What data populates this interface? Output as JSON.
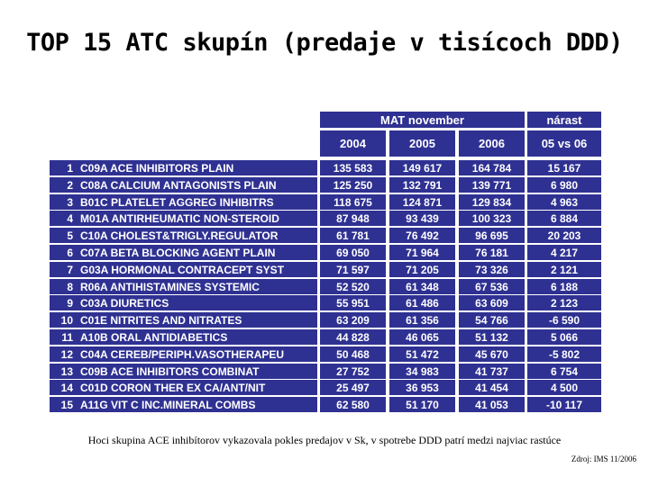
{
  "title": "TOP 15 ATC skupín (predaje v tisícoch DDD)",
  "header": {
    "group_mat": "MAT november",
    "group_growth": "nárast",
    "years": [
      "2004",
      "2005",
      "2006"
    ],
    "growth_label": "05 vs 06"
  },
  "rows": [
    {
      "rank": "1",
      "name": "C09A ACE INHIBITORS PLAIN",
      "y2004": "135 583",
      "y2005": "149 617",
      "y2006": "164 784",
      "growth": "15 167"
    },
    {
      "rank": "2",
      "name": "C08A CALCIUM ANTAGONISTS PLAIN",
      "y2004": "125 250",
      "y2005": "132 791",
      "y2006": "139 771",
      "growth": "6 980"
    },
    {
      "rank": "3",
      "name": "B01C PLATELET AGGREG INHIBITRS",
      "y2004": "118 675",
      "y2005": "124 871",
      "y2006": "129 834",
      "growth": "4 963"
    },
    {
      "rank": "4",
      "name": "M01A ANTIRHEUMATIC NON-STEROID",
      "y2004": "87 948",
      "y2005": "93 439",
      "y2006": "100 323",
      "growth": "6 884"
    },
    {
      "rank": "5",
      "name": "C10A CHOLEST&TRIGLY.REGULATOR",
      "y2004": "61 781",
      "y2005": "76 492",
      "y2006": "96 695",
      "growth": "20 203"
    },
    {
      "rank": "6",
      "name": "C07A BETA BLOCKING AGENT PLAIN",
      "y2004": "69 050",
      "y2005": "71 964",
      "y2006": "76 181",
      "growth": "4 217"
    },
    {
      "rank": "7",
      "name": "G03A HORMONAL CONTRACEPT SYST",
      "y2004": "71 597",
      "y2005": "71 205",
      "y2006": "73 326",
      "growth": "2 121"
    },
    {
      "rank": "8",
      "name": "R06A ANTIHISTAMINES SYSTEMIC",
      "y2004": "52 520",
      "y2005": "61 348",
      "y2006": "67 536",
      "growth": "6 188"
    },
    {
      "rank": "9",
      "name": "C03A DIURETICS",
      "y2004": "55 951",
      "y2005": "61 486",
      "y2006": "63 609",
      "growth": "2 123"
    },
    {
      "rank": "10",
      "name": "C01E NITRITES AND NITRATES",
      "y2004": "63 209",
      "y2005": "61 356",
      "y2006": "54 766",
      "growth": "-6 590"
    },
    {
      "rank": "11",
      "name": "A10B ORAL ANTIDIABETICS",
      "y2004": "44 828",
      "y2005": "46 065",
      "y2006": "51 132",
      "growth": "5 066"
    },
    {
      "rank": "12",
      "name": "C04A CEREB/PERIPH.VASOTHERAPEU",
      "y2004": "50 468",
      "y2005": "51 472",
      "y2006": "45 670",
      "growth": "-5 802"
    },
    {
      "rank": "13",
      "name": "C09B ACE INHIBITORS COMBINAT",
      "y2004": "27 752",
      "y2005": "34 983",
      "y2006": "41 737",
      "growth": "6 754"
    },
    {
      "rank": "14",
      "name": "C01D CORON THER EX CA/ANT/NIT",
      "y2004": "25 497",
      "y2005": "36 953",
      "y2006": "41 454",
      "growth": "4 500"
    },
    {
      "rank": "15",
      "name": "A11G VIT C INC.MINERAL COMBS",
      "y2004": "62 580",
      "y2005": "51 170",
      "y2006": "41 053",
      "growth": "-10 117"
    }
  ],
  "note": "Hoci skupina ACE inhibítorov vykazovala pokles predajov v Sk, v spotrebe DDD patrí medzi najviac rastúce",
  "source": "Zdroj: IMS 11/2006"
}
